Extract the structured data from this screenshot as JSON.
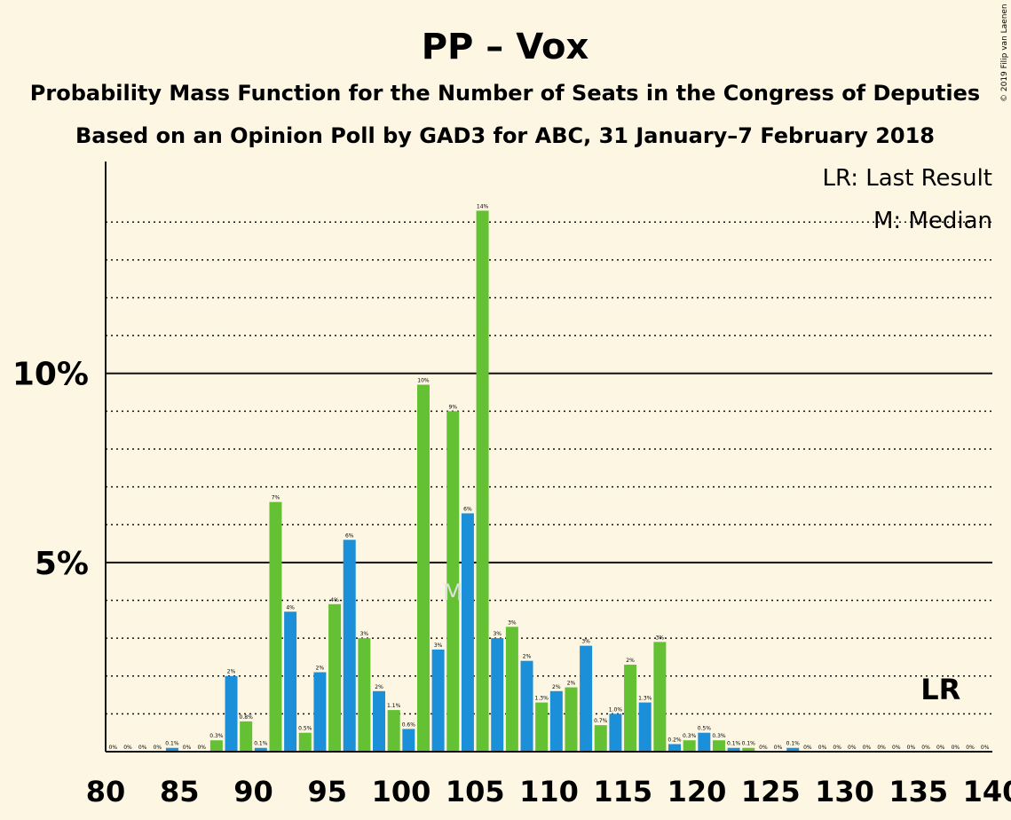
{
  "title": "PP – Vox",
  "subtitle1": "Probability Mass Function for the Number of Seats in the Congress of Deputies",
  "subtitle2": "Based on an Opinion Poll by GAD3 for ABC, 31 January–7 February 2018",
  "copyright": "© 2019 Filip van Laenen",
  "legend": {
    "lr": "LR: Last Result",
    "m": "M: Median"
  },
  "markers": {
    "median_label": "M",
    "median_seat": 104,
    "lr_label": "LR",
    "lr_seat": 137
  },
  "colors": {
    "background": "#FDF6E3",
    "blue": "#1B8FD8",
    "green": "#63C133",
    "median_marker": "#E0E0E0"
  },
  "chart_data": {
    "type": "bar",
    "xlim": [
      80,
      140
    ],
    "ylim": [
      0,
      15.6
    ],
    "xticks": [
      80,
      85,
      90,
      95,
      100,
      105,
      110,
      115,
      120,
      125,
      130,
      135,
      140
    ],
    "yticks": [
      {
        "value": 5,
        "label": "5%"
      },
      {
        "value": 10,
        "label": "10%"
      }
    ],
    "dotted_gridlines": [
      1,
      2,
      3,
      4,
      6,
      7,
      8,
      9,
      11,
      12,
      13,
      14
    ],
    "bars": [
      {
        "seat": 81,
        "value": 0,
        "label": "0%",
        "color": "blue"
      },
      {
        "seat": 82,
        "value": 0,
        "label": "0%",
        "color": "green"
      },
      {
        "seat": 83,
        "value": 0,
        "label": "0%",
        "color": "blue"
      },
      {
        "seat": 84,
        "value": 0,
        "label": "0%",
        "color": "green"
      },
      {
        "seat": 85,
        "value": 0.1,
        "label": "0.1%",
        "color": "blue"
      },
      {
        "seat": 86,
        "value": 0,
        "label": "0%",
        "color": "green"
      },
      {
        "seat": 87,
        "value": 0,
        "label": "0%",
        "color": "blue"
      },
      {
        "seat": 88,
        "value": 0.3,
        "label": "0.3%",
        "color": "green"
      },
      {
        "seat": 89,
        "value": 2,
        "label": "2%",
        "color": "blue"
      },
      {
        "seat": 90,
        "value": 0.8,
        "label": "0.8%",
        "color": "green"
      },
      {
        "seat": 91,
        "value": 0.1,
        "label": "0.1%",
        "color": "blue"
      },
      {
        "seat": 92,
        "value": 6.6,
        "label": "7%",
        "color": "green"
      },
      {
        "seat": 93,
        "value": 3.7,
        "label": "4%",
        "color": "blue"
      },
      {
        "seat": 94,
        "value": 0.5,
        "label": "0.5%",
        "color": "green"
      },
      {
        "seat": 95,
        "value": 2.1,
        "label": "2%",
        "color": "blue"
      },
      {
        "seat": 96,
        "value": 3.9,
        "label": "4%",
        "color": "green"
      },
      {
        "seat": 97,
        "value": 5.6,
        "label": "6%",
        "color": "blue"
      },
      {
        "seat": 98,
        "value": 3,
        "label": "3%",
        "color": "green"
      },
      {
        "seat": 99,
        "value": 1.6,
        "label": "2%",
        "color": "blue"
      },
      {
        "seat": 100,
        "value": 1.1,
        "label": "1.1%",
        "color": "green"
      },
      {
        "seat": 101,
        "value": 0.6,
        "label": "0.6%",
        "color": "blue"
      },
      {
        "seat": 102,
        "value": 9.7,
        "label": "10%",
        "color": "green"
      },
      {
        "seat": 103,
        "value": 2.7,
        "label": "3%",
        "color": "blue"
      },
      {
        "seat": 104,
        "value": 9,
        "label": "9%",
        "color": "green"
      },
      {
        "seat": 105,
        "value": 6.3,
        "label": "6%",
        "color": "blue"
      },
      {
        "seat": 106,
        "value": 14.3,
        "label": "14%",
        "color": "green"
      },
      {
        "seat": 107,
        "value": 3,
        "label": "3%",
        "color": "blue"
      },
      {
        "seat": 108,
        "value": 3.3,
        "label": "3%",
        "color": "green"
      },
      {
        "seat": 109,
        "value": 2.4,
        "label": "2%",
        "color": "blue"
      },
      {
        "seat": 110,
        "value": 1.3,
        "label": "1.3%",
        "color": "green"
      },
      {
        "seat": 111,
        "value": 1.6,
        "label": "2%",
        "color": "blue"
      },
      {
        "seat": 112,
        "value": 1.7,
        "label": "2%",
        "color": "green"
      },
      {
        "seat": 113,
        "value": 2.8,
        "label": "3%",
        "color": "blue"
      },
      {
        "seat": 114,
        "value": 0.7,
        "label": "0.7%",
        "color": "green"
      },
      {
        "seat": 115,
        "value": 1,
        "label": "1.0%",
        "color": "blue"
      },
      {
        "seat": 116,
        "value": 2.3,
        "label": "2%",
        "color": "green"
      },
      {
        "seat": 117,
        "value": 1.3,
        "label": "1.3%",
        "color": "blue"
      },
      {
        "seat": 118,
        "value": 2.9,
        "label": "3%",
        "color": "green"
      },
      {
        "seat": 119,
        "value": 0.2,
        "label": "0.2%",
        "color": "blue"
      },
      {
        "seat": 120,
        "value": 0.3,
        "label": "0.3%",
        "color": "green"
      },
      {
        "seat": 121,
        "value": 0.5,
        "label": "0.5%",
        "color": "blue"
      },
      {
        "seat": 122,
        "value": 0.3,
        "label": "0.3%",
        "color": "green"
      },
      {
        "seat": 123,
        "value": 0.1,
        "label": "0.1%",
        "color": "blue"
      },
      {
        "seat": 124,
        "value": 0.1,
        "label": "0.1%",
        "color": "green"
      },
      {
        "seat": 125,
        "value": 0,
        "label": "0%",
        "color": "blue"
      },
      {
        "seat": 126,
        "value": 0,
        "label": "0%",
        "color": "green"
      },
      {
        "seat": 127,
        "value": 0.1,
        "label": "0.1%",
        "color": "blue"
      },
      {
        "seat": 128,
        "value": 0,
        "label": "0%",
        "color": "green"
      },
      {
        "seat": 129,
        "value": 0,
        "label": "0%",
        "color": "blue"
      },
      {
        "seat": 130,
        "value": 0,
        "label": "0%",
        "color": "green"
      },
      {
        "seat": 131,
        "value": 0,
        "label": "0%",
        "color": "blue"
      },
      {
        "seat": 132,
        "value": 0,
        "label": "0%",
        "color": "green"
      },
      {
        "seat": 133,
        "value": 0,
        "label": "0%",
        "color": "blue"
      },
      {
        "seat": 134,
        "value": 0,
        "label": "0%",
        "color": "green"
      },
      {
        "seat": 135,
        "value": 0,
        "label": "0%",
        "color": "blue"
      },
      {
        "seat": 136,
        "value": 0,
        "label": "0%",
        "color": "green"
      },
      {
        "seat": 137,
        "value": 0,
        "label": "0%",
        "color": "blue"
      },
      {
        "seat": 138,
        "value": 0,
        "label": "0%",
        "color": "green"
      },
      {
        "seat": 139,
        "value": 0,
        "label": "0%",
        "color": "blue"
      },
      {
        "seat": 140,
        "value": 0,
        "label": "0%",
        "color": "green"
      }
    ]
  }
}
